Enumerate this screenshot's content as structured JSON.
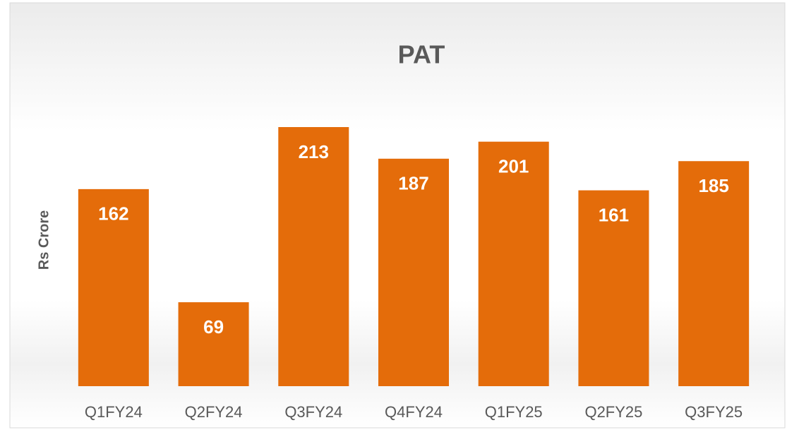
{
  "chart_data": {
    "type": "bar",
    "title": "PAT",
    "y_label": "Rs Crore",
    "categories": [
      "Q1FY24",
      "Q2FY24",
      "Q3FY24",
      "Q4FY24",
      "Q1FY25",
      "Q2FY25",
      "Q3FY25"
    ],
    "values": [
      162,
      69,
      213,
      187,
      201,
      161,
      185
    ],
    "color": "#e46c0a"
  }
}
